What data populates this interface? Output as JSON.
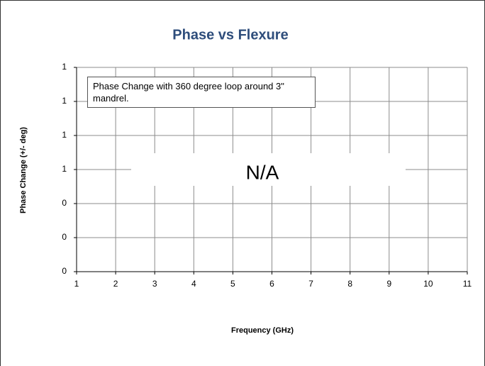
{
  "chart_data": {
    "type": "line",
    "title": "Phase vs Flexure",
    "xlabel": "Frequency (GHz)",
    "ylabel": "Phase Change (+/- deg)",
    "annotation": "Phase Change with 360 degree loop around 3\" mandrel.",
    "no_data_label": "N/A",
    "xlim": [
      1,
      11
    ],
    "xticks": [
      1,
      2,
      3,
      4,
      5,
      6,
      7,
      8,
      9,
      10,
      11
    ],
    "ylim": [
      0,
      1.2
    ],
    "yticks": [
      {
        "value": 0,
        "label": "0"
      },
      {
        "value": 0.2,
        "label": "0"
      },
      {
        "value": 0.4,
        "label": "0"
      },
      {
        "value": 0.6,
        "label": "1"
      },
      {
        "value": 0.8,
        "label": "1"
      },
      {
        "value": 1.0,
        "label": "1"
      },
      {
        "value": 1.2,
        "label": "1"
      }
    ],
    "grid": true,
    "title_color": "#2e4d7b"
  }
}
